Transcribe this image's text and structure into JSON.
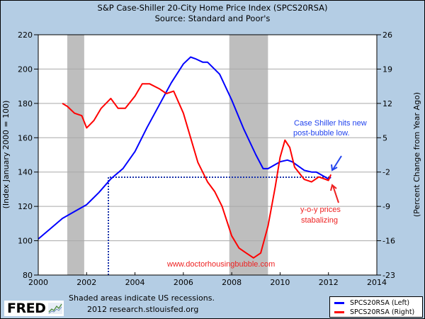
{
  "header": {
    "title": "S&P Case-Shiller 20-City Home Price Index (SPCS20RSA)",
    "subtitle": "Source: Standard and Poor's"
  },
  "footer": {
    "logo": "FRED",
    "recession_note": "Shaded areas indicate US recessions.",
    "copyright": "2012 research.stlouisfed.org"
  },
  "legend": {
    "items": [
      {
        "label": "SPCS20RSA (Left)",
        "color": "#0000ff"
      },
      {
        "label": "SPCS20RSA (Right)",
        "color": "#ff0000"
      }
    ]
  },
  "annotations": {
    "blue_note_line1": "Case Shiller hits new",
    "blue_note_line2": "post-bubble low.",
    "red_note_line1": "y-o-y prices",
    "red_note_line2": "stabalizing",
    "watermark": "www.doctorhousingbubble.com"
  },
  "colors": {
    "background": "#b4cde4",
    "plot_bg": "#ffffff",
    "recession": "#bebebe",
    "grid": "#a9a9a9",
    "left_series": "#0000ff",
    "right_series": "#ff0000",
    "reference_line": "#1a33aa"
  },
  "chart_data": {
    "type": "line",
    "title": "S&P Case-Shiller 20-City Home Price Index (SPCS20RSA)",
    "subtitle": "Source: Standard and Poor's",
    "xlabel": "",
    "ylabel": "(Index January 2000 = 100)",
    "ylabel_right": "(Percent Change from Year Ago)",
    "xlim": [
      2000,
      2014
    ],
    "ylim": [
      80,
      220
    ],
    "ylim_right": [
      -23,
      26
    ],
    "x_ticks": [
      "2000",
      "2002",
      "2004",
      "2006",
      "2008",
      "2010",
      "2012",
      "2014"
    ],
    "y_ticks": [
      "80",
      "100",
      "120",
      "140",
      "160",
      "180",
      "200",
      "220"
    ],
    "y_ticks_right": [
      "-23",
      "-16",
      "-9",
      "-2",
      "5",
      "12",
      "19",
      "26"
    ],
    "grid": true,
    "legend_position": "bottom-right",
    "recessions": [
      [
        2001.2,
        2001.9
      ],
      [
        2007.9,
        2009.5
      ]
    ],
    "reference_lines": {
      "horizontal_y": 137,
      "from_x": 2002.9,
      "to_x": 2012.1,
      "vertical_x": 2002.9
    },
    "series": [
      {
        "name": "SPCS20RSA (Left)",
        "axis": "left",
        "color": "#0000ff",
        "x": [
          2000.0,
          2000.5,
          2001.0,
          2001.5,
          2002.0,
          2002.5,
          2003.0,
          2003.5,
          2004.0,
          2004.5,
          2005.0,
          2005.5,
          2006.0,
          2006.3,
          2006.5,
          2006.8,
          2007.0,
          2007.5,
          2008.0,
          2008.5,
          2009.0,
          2009.3,
          2009.5,
          2010.0,
          2010.3,
          2010.5,
          2011.0,
          2011.3,
          2011.5,
          2012.0,
          2012.1
        ],
        "values": [
          101,
          107,
          113,
          117,
          121,
          128,
          136,
          142,
          152,
          166,
          179,
          192,
          203,
          207,
          206,
          204,
          204,
          197,
          182,
          165,
          150,
          142,
          142,
          146,
          147,
          146,
          141,
          140,
          140,
          136,
          137
        ]
      },
      {
        "name": "SPCS20RSA (Right)",
        "axis": "right",
        "color": "#ff0000",
        "x": [
          2001.0,
          2001.2,
          2001.5,
          2001.8,
          2002.0,
          2002.3,
          2002.6,
          2003.0,
          2003.3,
          2003.6,
          2004.0,
          2004.3,
          2004.6,
          2005.0,
          2005.3,
          2005.6,
          2006.0,
          2006.3,
          2006.6,
          2007.0,
          2007.3,
          2007.6,
          2008.0,
          2008.3,
          2008.6,
          2008.9,
          2009.2,
          2009.5,
          2009.8,
          2010.0,
          2010.2,
          2010.4,
          2010.6,
          2011.0,
          2011.3,
          2011.6,
          2012.0,
          2012.1
        ],
        "values": [
          12.0,
          11.4,
          10.0,
          9.5,
          7.0,
          8.5,
          11.0,
          13.0,
          11.0,
          11.0,
          13.5,
          16.0,
          16.0,
          15.0,
          14.0,
          14.5,
          10.0,
          5.0,
          0.0,
          -4.0,
          -6.0,
          -9.0,
          -15.0,
          -17.5,
          -18.5,
          -19.5,
          -18.5,
          -13.0,
          -5.0,
          1.0,
          4.5,
          3.0,
          -1.0,
          -3.5,
          -4.0,
          -3.0,
          -3.7,
          -2.5
        ]
      }
    ]
  }
}
